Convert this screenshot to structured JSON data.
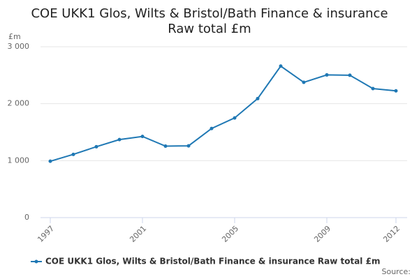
{
  "chart_data": {
    "type": "line",
    "title": [
      "COE UKK1 Glos, Wilts & Bristol/Bath Finance & insurance",
      "Raw total £m"
    ],
    "y_label": "£m",
    "source": "Source:",
    "x": [
      1997,
      1998,
      1999,
      2000,
      2001,
      2002,
      2003,
      2004,
      2005,
      2006,
      2007,
      2008,
      2009,
      2010,
      2011,
      2012
    ],
    "series": [
      {
        "name": "COE UKK1 Glos, Wilts & Bristol/Bath Finance & insurance Raw total £m",
        "color": "#1f78b4",
        "values": [
          990,
          1110,
          1245,
          1370,
          1425,
          1255,
          1260,
          1565,
          1750,
          2090,
          2660,
          2375,
          2505,
          2500,
          2265,
          2225
        ]
      }
    ],
    "xlim": [
      1997,
      2012
    ],
    "xticks": [
      1997,
      2001,
      2005,
      2009,
      2012
    ],
    "ylim": [
      0,
      3000
    ],
    "yticks": [
      0,
      {
        "value": 1000,
        "label": "1 000"
      },
      {
        "value": 2000,
        "label": "2 000"
      },
      {
        "value": 3000,
        "label": "3 000"
      }
    ],
    "grid": true
  }
}
